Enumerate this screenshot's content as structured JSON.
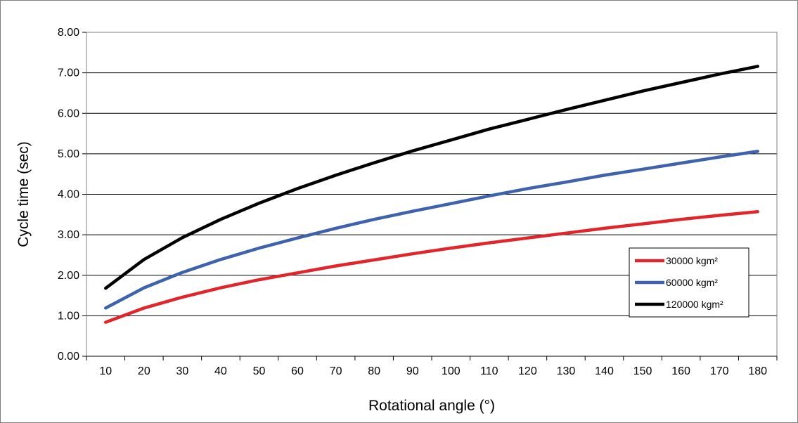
{
  "chart_data": {
    "type": "line",
    "title": "",
    "xlabel": "Rotational angle (°)",
    "ylabel": "Cycle time (sec)",
    "x": [
      10,
      20,
      30,
      40,
      50,
      60,
      70,
      80,
      90,
      100,
      110,
      120,
      130,
      140,
      150,
      160,
      170,
      180
    ],
    "x_tick_labels": [
      "10",
      "20",
      "30",
      "40",
      "50",
      "60",
      "70",
      "80",
      "90",
      "100",
      "110",
      "120",
      "130",
      "140",
      "150",
      "160",
      "170",
      "180"
    ],
    "ylim": [
      0,
      8
    ],
    "y_ticks": [
      0,
      1,
      2,
      3,
      4,
      5,
      6,
      7,
      8
    ],
    "y_tick_labels": [
      "0.00",
      "1.00",
      "2.00",
      "3.00",
      "4.00",
      "5.00",
      "6.00",
      "7.00",
      "8.00"
    ],
    "grid": "horizontal",
    "legend_position": "right",
    "series": [
      {
        "name": "30000 kgm²",
        "color": "#e0262b",
        "values": [
          0.84,
          1.19,
          1.46,
          1.69,
          1.89,
          2.06,
          2.23,
          2.38,
          2.53,
          2.67,
          2.8,
          2.92,
          3.04,
          3.16,
          3.27,
          3.38,
          3.48,
          3.57
        ]
      },
      {
        "name": "60000 kgm²",
        "color": "#3f62ac",
        "values": [
          1.19,
          1.69,
          2.07,
          2.39,
          2.67,
          2.92,
          3.16,
          3.38,
          3.58,
          3.77,
          3.96,
          4.14,
          4.3,
          4.47,
          4.62,
          4.77,
          4.92,
          5.06
        ]
      },
      {
        "name": "120000 kgm²",
        "color": "#000000",
        "values": [
          1.68,
          2.39,
          2.93,
          3.38,
          3.78,
          4.14,
          4.47,
          4.78,
          5.07,
          5.34,
          5.61,
          5.85,
          6.09,
          6.32,
          6.55,
          6.76,
          6.97,
          7.16
        ]
      }
    ]
  }
}
